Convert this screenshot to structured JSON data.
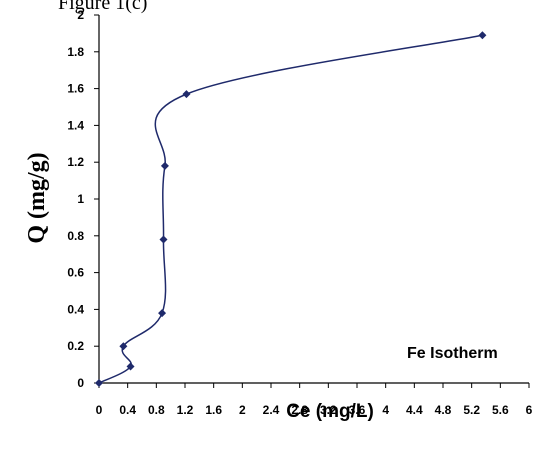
{
  "header_fragment": "Figure 1(c)",
  "chart_data": {
    "type": "scatter",
    "title": "",
    "xlabel": "Ce (mg/L)",
    "ylabel": "Q (mg/g)",
    "annotation": "Fe Isotherm",
    "xlim": [
      0,
      6
    ],
    "ylim": [
      0,
      2
    ],
    "xticks": [
      "0",
      "0.4",
      "0.8",
      "1.2",
      "1.6",
      "2",
      "2.4",
      "2.8",
      "3.2",
      "3.6",
      "4",
      "4.4",
      "4.8",
      "5.2",
      "5.6",
      "6"
    ],
    "xtick_values": [
      0,
      0.4,
      0.8,
      1.2,
      1.6,
      2,
      2.4,
      2.8,
      3.2,
      3.6,
      4,
      4.4,
      4.8,
      5.2,
      5.6,
      6
    ],
    "yticks": [
      "0",
      "0.2",
      "0.4",
      "0.6",
      "0.8",
      "1",
      "1.2",
      "1.4",
      "1.6",
      "1.8",
      "2"
    ],
    "ytick_values": [
      0,
      0.2,
      0.4,
      0.6,
      0.8,
      1,
      1.2,
      1.4,
      1.6,
      1.8,
      2
    ],
    "grid": false,
    "legend": "none",
    "series": [
      {
        "x": [
          0,
          0.44,
          0.34,
          0.88,
          0.9,
          0.92,
          1.22,
          5.35
        ],
        "y": [
          0,
          0.09,
          0.2,
          0.38,
          0.78,
          1.18,
          1.57,
          1.89
        ],
        "color": "#1f2a6b",
        "marker": "diamond",
        "line": "smooth"
      }
    ]
  }
}
